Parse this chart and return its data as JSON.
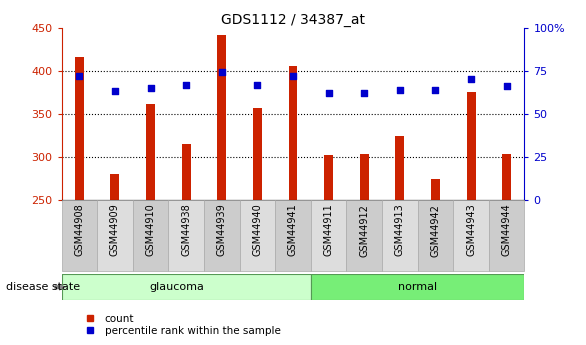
{
  "title": "GDS1112 / 34387_at",
  "categories": [
    "GSM44908",
    "GSM44909",
    "GSM44910",
    "GSM44938",
    "GSM44939",
    "GSM44940",
    "GSM44941",
    "GSM44911",
    "GSM44912",
    "GSM44913",
    "GSM44942",
    "GSM44943",
    "GSM44944"
  ],
  "bar_values": [
    416,
    280,
    362,
    315,
    442,
    357,
    406,
    302,
    303,
    324,
    274,
    375,
    303
  ],
  "bar_base": 250,
  "dot_values": [
    72,
    63,
    65,
    67,
    74,
    67,
    72,
    62,
    62,
    64,
    64,
    70,
    66
  ],
  "ylim": [
    250,
    450
  ],
  "y2lim": [
    0,
    100
  ],
  "yticks": [
    250,
    300,
    350,
    400,
    450
  ],
  "y2ticks": [
    0,
    25,
    50,
    75,
    100
  ],
  "bar_color": "#cc2200",
  "dot_color": "#0000cc",
  "background_color": "#ffffff",
  "n_glaucoma": 7,
  "glaucoma_color": "#ccffcc",
  "normal_color": "#77ee77",
  "label_bg_even": "#cccccc",
  "label_bg_odd": "#dddddd",
  "disease_state_label": "disease state",
  "glaucoma_label": "glaucoma",
  "normal_label": "normal",
  "legend_count": "count",
  "legend_percentile": "percentile rank within the sample"
}
